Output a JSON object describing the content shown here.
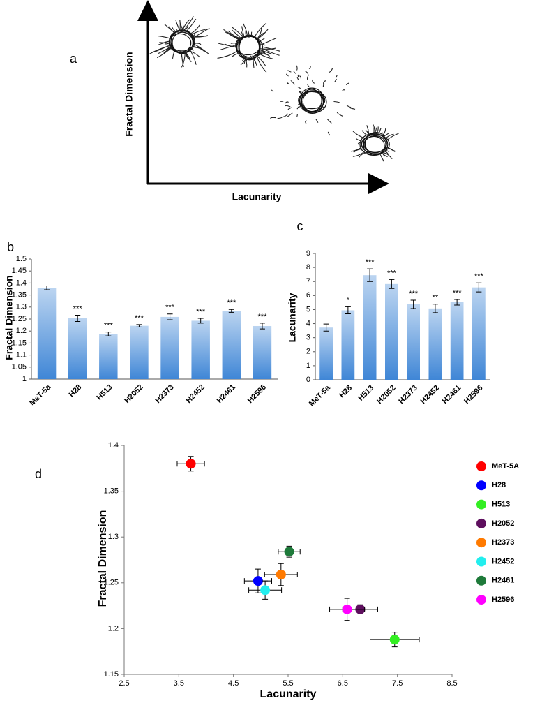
{
  "chart_data": [
    {
      "type": "schematic",
      "panel_label": "a",
      "x_label": "Lacunarity",
      "y_label": "Fractal Dimension"
    },
    {
      "type": "bar",
      "panel_label": "b",
      "y_label": "Fractal Dimension",
      "categories": [
        "MeT-5a",
        "H28",
        "H513",
        "H2052",
        "H2373",
        "H2452",
        "H2461",
        "H2596"
      ],
      "values": [
        1.38,
        1.253,
        1.188,
        1.222,
        1.259,
        1.243,
        1.284,
        1.221
      ],
      "errors": [
        0.008,
        0.013,
        0.008,
        0.005,
        0.012,
        0.01,
        0.006,
        0.012
      ],
      "annotations": [
        null,
        "***",
        "***",
        "***",
        "***",
        "***",
        "***",
        "***"
      ],
      "color": "#3f86d6",
      "ylim": [
        1,
        1.5
      ],
      "yticks": [
        1,
        1.05,
        1.1,
        1.15,
        1.2,
        1.25,
        1.3,
        1.35,
        1.4,
        1.45,
        1.5
      ]
    },
    {
      "type": "bar",
      "panel_label": "c",
      "y_label": "Lacunarity",
      "categories": [
        "MeT-5a",
        "H28",
        "H513",
        "H2052",
        "H2373",
        "H2452",
        "H2461",
        "H2596"
      ],
      "values": [
        3.72,
        4.95,
        7.45,
        6.82,
        5.37,
        5.08,
        5.52,
        6.58
      ],
      "errors": [
        0.25,
        0.25,
        0.45,
        0.32,
        0.3,
        0.3,
        0.2,
        0.32
      ],
      "annotations": [
        null,
        "*",
        "***",
        "***",
        "***",
        "**",
        "***",
        "***"
      ],
      "color": "#3f86d6",
      "ylim": [
        0,
        9
      ],
      "yticks": [
        0,
        1,
        2,
        3,
        4,
        5,
        6,
        7,
        8,
        9
      ]
    },
    {
      "type": "scatter",
      "panel_label": "d",
      "x_label": "Lacunarity",
      "y_label": "Fractal Dimension",
      "xlim": [
        2.5,
        8.5
      ],
      "xticks": [
        2.5,
        3.5,
        4.5,
        5.5,
        6.5,
        7.5,
        8.5
      ],
      "ylim": [
        1.15,
        1.4
      ],
      "yticks": [
        1.15,
        1.2,
        1.25,
        1.3,
        1.35,
        1.4
      ],
      "legend": "right",
      "series": [
        {
          "name": "MeT-5A",
          "color": "#ff0000",
          "x": [
            3.72
          ],
          "values": [
            1.38
          ],
          "x_errors": [
            0.25
          ],
          "y_errors": [
            0.008
          ]
        },
        {
          "name": "H28",
          "color": "#0000ff",
          "x": [
            4.95
          ],
          "values": [
            1.252
          ],
          "x_errors": [
            0.25
          ],
          "y_errors": [
            0.013
          ]
        },
        {
          "name": "H513",
          "color": "#33ee22",
          "x": [
            7.45
          ],
          "values": [
            1.188
          ],
          "x_errors": [
            0.45
          ],
          "y_errors": [
            0.008
          ]
        },
        {
          "name": "H2052",
          "color": "#5e0f5e",
          "x": [
            6.82
          ],
          "values": [
            1.221
          ],
          "x_errors": [
            0.32
          ],
          "y_errors": [
            0.005
          ]
        },
        {
          "name": "H2373",
          "color": "#ff7a00",
          "x": [
            5.37
          ],
          "values": [
            1.259
          ],
          "x_errors": [
            0.3
          ],
          "y_errors": [
            0.012
          ]
        },
        {
          "name": "H2452",
          "color": "#22eeee",
          "x": [
            5.08
          ],
          "values": [
            1.242
          ],
          "x_errors": [
            0.3
          ],
          "y_errors": [
            0.01
          ]
        },
        {
          "name": "H2461",
          "color": "#1e7a3a",
          "x": [
            5.52
          ],
          "values": [
            1.284
          ],
          "x_errors": [
            0.2
          ],
          "y_errors": [
            0.006
          ]
        },
        {
          "name": "H2596",
          "color": "#ff00ff",
          "x": [
            6.58
          ],
          "values": [
            1.221
          ],
          "x_errors": [
            0.32
          ],
          "y_errors": [
            0.012
          ]
        }
      ]
    }
  ]
}
